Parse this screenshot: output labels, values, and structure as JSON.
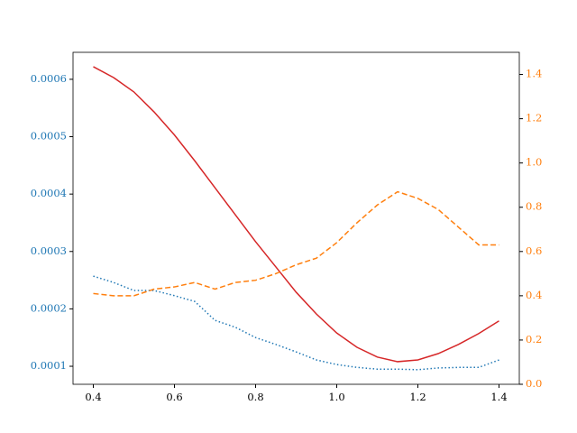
{
  "chart_data": {
    "type": "line",
    "x": [
      0.4,
      0.45,
      0.5,
      0.55,
      0.6,
      0.65,
      0.7,
      0.75,
      0.8,
      0.85,
      0.9,
      0.95,
      1.0,
      1.05,
      1.1,
      1.15,
      1.2,
      1.25,
      1.3,
      1.35,
      1.4
    ],
    "xlim": [
      0.35,
      1.45
    ],
    "xticks": [
      0.4,
      0.6,
      0.8,
      {
        "value": 1.0,
        "label": "1.0"
      },
      1.2,
      1.4
    ],
    "ylim": [
      6.86e-05,
      0.000647
    ],
    "yticks": [
      0.0001,
      0.0002,
      0.0003,
      0.0004,
      0.0005,
      0.0006
    ],
    "ytick_color": "#1f77b4",
    "y2lim": [
      0,
      1.5
    ],
    "y2ticks": [
      {
        "value": 0,
        "label": "0.0"
      },
      0.2,
      0.4,
      0.6,
      0.8,
      {
        "value": 1,
        "label": "1.0"
      },
      1.2,
      1.4
    ],
    "y2tick_color": "#ff7f0e",
    "series": [
      {
        "color": "#d62728",
        "dash": "solid",
        "axis": "y",
        "values": [
          0.000622,
          0.000603,
          0.000578,
          0.000543,
          0.000503,
          0.000458,
          0.000411,
          0.000364,
          0.000317,
          0.000273,
          0.000229,
          0.000191,
          0.000158,
          0.000133,
          0.000116,
          0.000108,
          0.000111,
          0.000122,
          0.000138,
          0.000157,
          0.000179
        ]
      },
      {
        "color": "#1f77b4",
        "dash": "dotted",
        "axis": "y",
        "values": [
          0.000257,
          0.000246,
          0.000232,
          0.000232,
          0.000223,
          0.000213,
          0.00018,
          0.000168,
          0.00015,
          0.000138,
          0.000125,
          0.000111,
          0.000103,
          9.8e-05,
          9.5e-05,
          9.5e-05,
          9.4e-05,
          9.7e-05,
          9.8e-05,
          9.8e-05,
          0.000111
        ]
      },
      {
        "color": "#ff7f0e",
        "dash": "dashed",
        "axis": "y2",
        "values": [
          0.41,
          0.4,
          0.4,
          0.43,
          0.44,
          0.46,
          0.43,
          0.46,
          0.47,
          0.5,
          0.54,
          0.57,
          0.64,
          0.73,
          0.81,
          0.87,
          0.84,
          0.79,
          0.71,
          0.63,
          0.63
        ]
      }
    ]
  }
}
